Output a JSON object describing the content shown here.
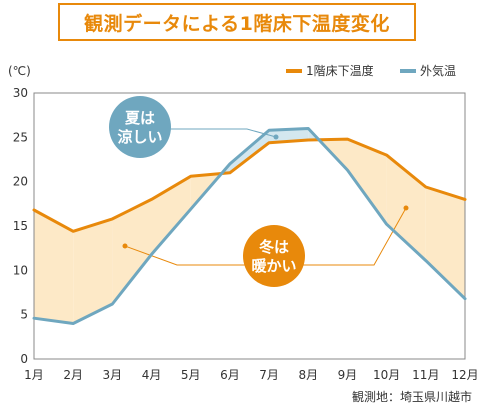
{
  "title": "観測データによる1階床下温度変化",
  "chart_data": {
    "type": "line",
    "categories": [
      "1月",
      "2月",
      "3月",
      "4月",
      "5月",
      "6月",
      "7月",
      "8月",
      "9月",
      "10月",
      "11月",
      "12月"
    ],
    "y_unit": "(℃)",
    "ylim": [
      0,
      30
    ],
    "yticks": [
      "0",
      "5",
      "10",
      "15",
      "20",
      "25",
      "30"
    ],
    "grid": false,
    "legend_position": "top-right",
    "series": [
      {
        "name": "1階床下温度",
        "color": "#e8890b",
        "values": [
          16.8,
          14.4,
          15.8,
          18.0,
          20.6,
          21.0,
          24.4,
          24.7,
          24.8,
          23.0,
          19.4,
          18.0
        ]
      },
      {
        "name": "外気温",
        "color": "#6fa7bf",
        "values": [
          4.6,
          4.0,
          6.2,
          11.8,
          16.9,
          22.0,
          25.8,
          26.0,
          21.3,
          15.2,
          11.1,
          6.8
        ]
      }
    ],
    "fill_colors": {
      "underfloor_warmer": "#fde9c7",
      "outdoor_warmer": "#d3e7ef"
    },
    "annotations": [
      {
        "line1": "夏は",
        "line2": "涼しい",
        "color": "#6fa7bf"
      },
      {
        "line1": "冬は",
        "line2": "暖かい",
        "color": "#e8890b"
      }
    ]
  },
  "source": "観測地：埼玉県川越市"
}
